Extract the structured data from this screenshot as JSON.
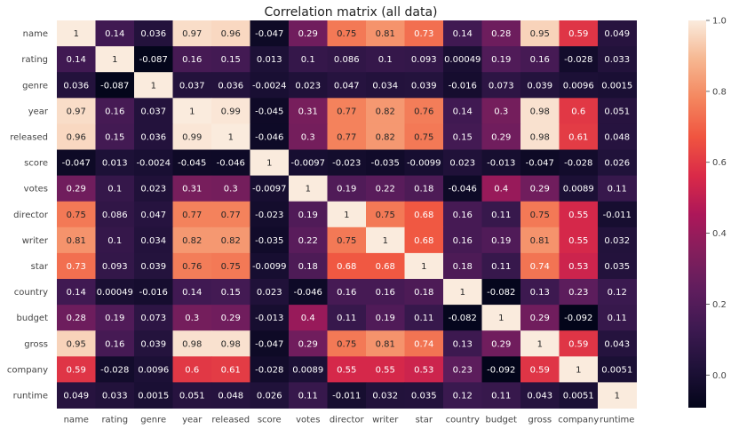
{
  "chart_data": {
    "type": "heatmap",
    "title": "Correlation matrix (all data)",
    "labels": [
      "name",
      "rating",
      "genre",
      "year",
      "released",
      "score",
      "votes",
      "director",
      "writer",
      "star",
      "country",
      "budget",
      "gross",
      "company",
      "runtime"
    ],
    "values": [
      [
        1,
        0.14,
        0.036,
        0.97,
        0.96,
        -0.047,
        0.29,
        0.75,
        0.81,
        0.73,
        0.14,
        0.28,
        0.95,
        0.59,
        0.049
      ],
      [
        0.14,
        1,
        -0.087,
        0.16,
        0.15,
        0.013,
        0.1,
        0.086,
        0.1,
        0.093,
        0.00049,
        0.19,
        0.16,
        -0.028,
        0.033
      ],
      [
        0.036,
        -0.087,
        1,
        0.037,
        0.036,
        -0.0024,
        0.023,
        0.047,
        0.034,
        0.039,
        -0.016,
        0.073,
        0.039,
        0.0096,
        0.0015
      ],
      [
        0.97,
        0.16,
        0.037,
        1,
        0.99,
        -0.045,
        0.31,
        0.77,
        0.82,
        0.76,
        0.14,
        0.3,
        0.98,
        0.6,
        0.051
      ],
      [
        0.96,
        0.15,
        0.036,
        0.99,
        1,
        -0.046,
        0.3,
        0.77,
        0.82,
        0.75,
        0.15,
        0.29,
        0.98,
        0.61,
        0.048
      ],
      [
        -0.047,
        0.013,
        -0.0024,
        -0.045,
        -0.046,
        1,
        -0.0097,
        -0.023,
        -0.035,
        -0.0099,
        0.023,
        -0.013,
        -0.047,
        -0.028,
        0.026
      ],
      [
        0.29,
        0.1,
        0.023,
        0.31,
        0.3,
        -0.0097,
        1,
        0.19,
        0.22,
        0.18,
        -0.046,
        0.4,
        0.29,
        0.0089,
        0.11
      ],
      [
        0.75,
        0.086,
        0.047,
        0.77,
        0.77,
        -0.023,
        0.19,
        1,
        0.75,
        0.68,
        0.16,
        0.11,
        0.75,
        0.55,
        -0.011
      ],
      [
        0.81,
        0.1,
        0.034,
        0.82,
        0.82,
        -0.035,
        0.22,
        0.75,
        1,
        0.68,
        0.16,
        0.19,
        0.81,
        0.55,
        0.032
      ],
      [
        0.73,
        0.093,
        0.039,
        0.76,
        0.75,
        -0.0099,
        0.18,
        0.68,
        0.68,
        1,
        0.18,
        0.11,
        0.74,
        0.53,
        0.035
      ],
      [
        0.14,
        0.00049,
        -0.016,
        0.14,
        0.15,
        0.023,
        -0.046,
        0.16,
        0.16,
        0.18,
        1,
        -0.082,
        0.13,
        0.23,
        0.12
      ],
      [
        0.28,
        0.19,
        0.073,
        0.3,
        0.29,
        -0.013,
        0.4,
        0.11,
        0.19,
        0.11,
        -0.082,
        1,
        0.29,
        -0.092,
        0.11
      ],
      [
        0.95,
        0.16,
        0.039,
        0.98,
        0.98,
        -0.047,
        0.29,
        0.75,
        0.81,
        0.74,
        0.13,
        0.29,
        1,
        0.59,
        0.043
      ],
      [
        0.59,
        -0.028,
        0.0096,
        0.6,
        0.61,
        -0.028,
        0.0089,
        0.55,
        0.55,
        0.53,
        0.23,
        -0.092,
        0.59,
        1,
        0.0051
      ],
      [
        0.049,
        0.033,
        0.0015,
        0.051,
        0.048,
        0.026,
        0.11,
        -0.011,
        0.032,
        0.035,
        0.12,
        0.11,
        0.043,
        0.0051,
        1
      ]
    ],
    "colorbar": {
      "min": -0.092,
      "max": 1,
      "ticks": [
        0.0,
        0.2,
        0.4,
        0.6,
        0.8,
        1.0
      ],
      "tick_labels": [
        "0.0",
        "0.2",
        "0.4",
        "0.6",
        "0.8",
        "1.0"
      ]
    },
    "colormap": "rocket",
    "cell_labels_shown": true
  }
}
